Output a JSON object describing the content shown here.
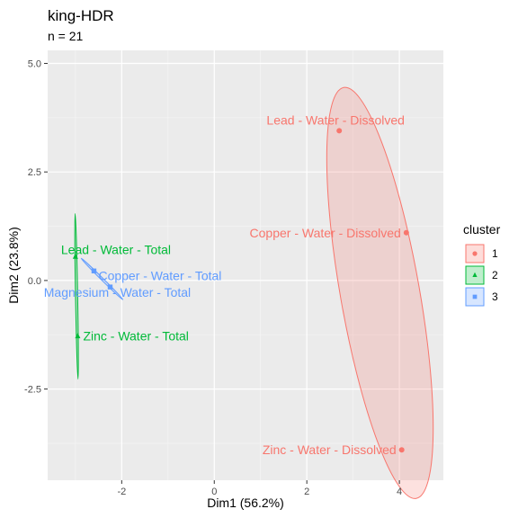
{
  "chart_data": {
    "type": "scatter",
    "title": "king-HDR",
    "subtitle": "n = 21",
    "xlabel": "Dim1 (56.2%)",
    "ylabel": "Dim2 (23.8%)",
    "xlim": [
      -3.6,
      4.95
    ],
    "ylim": [
      -4.6,
      5.3
    ],
    "xticks": [
      -2,
      0,
      2,
      4
    ],
    "xtick_labels": [
      "-2",
      "0",
      "2",
      "4"
    ],
    "yticks": [
      -2.5,
      0.0,
      2.5,
      5.0
    ],
    "ytick_labels": [
      "-2.5",
      "0.0",
      "2.5",
      "5.0"
    ],
    "grid": true,
    "panel_background": "#ebebeb",
    "legend": {
      "title": "cluster",
      "position": "right",
      "entries": [
        {
          "label": "1",
          "color": "#f8766d",
          "shape": "circle"
        },
        {
          "label": "2",
          "color": "#00ba38",
          "shape": "triangle"
        },
        {
          "label": "3",
          "color": "#619cff",
          "shape": "square"
        }
      ]
    },
    "series": [
      {
        "name": "1",
        "color": "#f8766d",
        "shape": "circle",
        "points": [
          {
            "label": "Lead - Water - Dissolved",
            "x": 2.7,
            "y": 3.45
          },
          {
            "label": "Copper - Water - Dissolved",
            "x": 4.15,
            "y": 1.1
          },
          {
            "label": "Zinc - Water - Dissolved",
            "x": 4.05,
            "y": -3.9
          }
        ]
      },
      {
        "name": "2",
        "color": "#00ba38",
        "shape": "triangle",
        "points": [
          {
            "label": "Lead - Water - Total",
            "x": -3.0,
            "y": 0.55
          },
          {
            "label": "Zinc - Water - Total",
            "x": -2.95,
            "y": -1.28
          }
        ]
      },
      {
        "name": "3",
        "color": "#619cff",
        "shape": "square",
        "points": [
          {
            "label": "Copper - Water - Total",
            "x": -2.6,
            "y": 0.22
          },
          {
            "label": "Magnesium - Water - Total",
            "x": -2.25,
            "y": -0.15
          }
        ]
      }
    ]
  }
}
